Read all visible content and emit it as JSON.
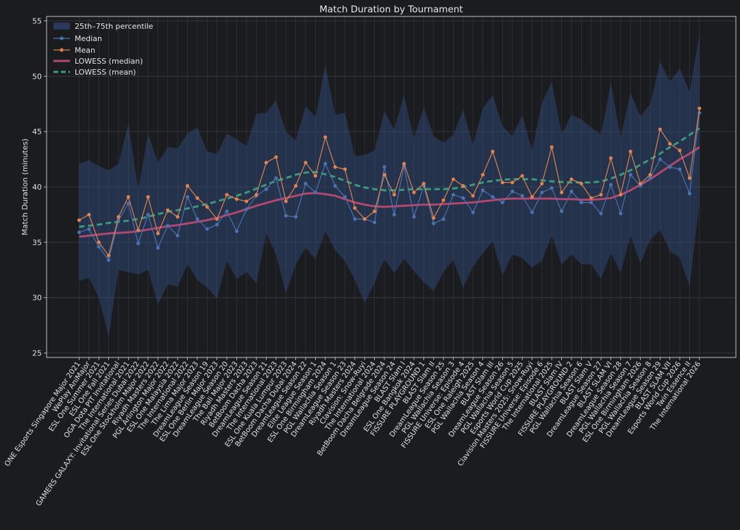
{
  "chart_data": {
    "type": "line",
    "title": "Match Duration by Tournament",
    "xlabel": "",
    "ylabel": "Match Duration (minutes)",
    "ylim": [
      24.6,
      55.4
    ],
    "yticks": [
      25,
      30,
      35,
      40,
      45,
      50,
      55
    ],
    "grid": true,
    "legend_position": "top-left",
    "categories": [
      "ONE Esports Singapore Major 2021",
      "WePlay AniMajor",
      "ESL One Summer 2021",
      "ESL One Fall 2021",
      "OGA Dota PIT Invitational",
      "The International 2021",
      "GAMERS GALAXY: Invitational Series Dubai 2022",
      "ESL One Stockholm Major 2022",
      "Riyadh Masters 2022",
      "PGL Arlington Major 2022",
      "ESL One Malaysia 2022",
      "The International 2022",
      "The Lima Major 2023",
      "DreamLeague Season 19",
      "ESL One Berlin Major 2023",
      "DreamLeague Season 20",
      "The Bali Major 2023",
      "Riyadh Masters 2023",
      "BetBoom Dacha 2023",
      "DreamLeague Season 21",
      "The International 2023",
      "ESL One Kuala Lumpur 2023",
      "BetBoom Dacha Dubai 2024",
      "DreamLeague Season 22",
      "Elite League Season 1",
      "ESL One Birmingham 2024",
      "PGL Wallachia Season 1",
      "DreamLeague Season 23",
      "Riyadh Masters 2024",
      "Clavision: Snow-Ruyi",
      "The International 2024",
      "BetBoom Dacha Belgrade 2024",
      "DreamLeague Season 24",
      "BLAST Slam I",
      "ESL One Bangkok 2024",
      "FISSURE PLAYGROUND 1",
      "BLAST Slam II",
      "DreamLeague Season 25",
      "PGL Wallachia Season 3",
      "FISSURE Universe: Episode 4",
      "ESL One Raleigh 2025",
      "PGL Wallachia Season 4",
      "BLAST Slam III",
      "DreamLeague Season 26",
      "PGL Wallachia Season 5",
      "Esports World Cup 2025",
      "Clavision Masters 2025: Snow-Ruyi",
      "FISSURE Universe: Episode 6",
      "The International 2025",
      "BLAST Slam IV",
      "FISSURE PLAYGROUND 2",
      "PGL Wallachia Season 6",
      "BLAST Slam V",
      "DreamLeague Season 27",
      "BLAST SLAM VI",
      "DreamLeague Season 28",
      "PGL Wallachia Season 7",
      "ESL One Birmingham 2026",
      "PGL Wallachia Season 8",
      "DreamLeague Season 29",
      "BLAST SLAM VII",
      "Esports World Cup 2026",
      "Twin Essence II",
      "The International 2026"
    ],
    "series": [
      {
        "name": "Median",
        "color": "#4c72b0",
        "values": [
          35.9,
          36.2,
          34.6,
          33.4,
          37.0,
          38.5,
          34.9,
          37.5,
          34.5,
          36.5,
          35.6,
          39.1,
          37.1,
          36.2,
          36.6,
          37.8,
          36.0,
          38.0,
          39.2,
          39.8,
          40.8,
          37.4,
          37.3,
          40.3,
          39.5,
          42.1,
          40.1,
          39.1,
          37.1,
          37.1,
          36.8,
          41.8,
          37.5,
          41.9,
          37.3,
          40.1,
          36.7,
          37.1,
          39.3,
          39.0,
          37.7,
          39.7,
          39.1,
          38.6,
          39.6,
          39.2,
          37.7,
          39.5,
          39.9,
          37.8,
          39.6,
          38.6,
          38.6,
          37.6,
          40.2,
          37.6,
          41.1,
          40.1,
          40.8,
          42.5,
          41.8,
          41.6,
          39.4,
          46.7
        ]
      },
      {
        "name": "Mean",
        "color": "#dd8452",
        "values": [
          37.0,
          37.5,
          35.0,
          33.8,
          37.3,
          39.1,
          36.1,
          39.1,
          35.8,
          37.9,
          37.3,
          40.1,
          39.0,
          38.2,
          37.1,
          39.3,
          38.9,
          38.7,
          39.3,
          42.2,
          42.7,
          38.7,
          40.1,
          42.2,
          41.0,
          44.5,
          41.8,
          41.6,
          38.1,
          37.1,
          37.8,
          41.1,
          39.3,
          42.1,
          39.5,
          40.3,
          37.2,
          38.8,
          40.7,
          40.1,
          39.2,
          41.1,
          43.2,
          40.4,
          40.4,
          41.0,
          39.1,
          40.3,
          43.6,
          39.5,
          40.7,
          40.3,
          39.0,
          39.3,
          42.6,
          39.3,
          43.2,
          40.3,
          41.1,
          45.2,
          43.9,
          43.3,
          40.8,
          47.1
        ]
      },
      {
        "name": "LOWESS (median)",
        "color": "#b84a72",
        "values": [
          35.5,
          35.6,
          35.7,
          35.8,
          35.85,
          35.9,
          36.0,
          36.15,
          36.3,
          36.45,
          36.55,
          36.7,
          36.85,
          37.0,
          37.2,
          37.45,
          37.7,
          38.0,
          38.3,
          38.55,
          38.8,
          39.0,
          39.2,
          39.4,
          39.45,
          39.35,
          39.2,
          38.9,
          38.6,
          38.4,
          38.25,
          38.2,
          38.25,
          38.3,
          38.35,
          38.4,
          38.4,
          38.45,
          38.5,
          38.55,
          38.6,
          38.7,
          38.8,
          38.9,
          38.95,
          38.95,
          38.95,
          38.95,
          38.95,
          38.9,
          38.9,
          38.85,
          38.85,
          38.9,
          39.0,
          39.3,
          39.7,
          40.2,
          40.7,
          41.3,
          41.9,
          42.5,
          43.0,
          43.6
        ]
      },
      {
        "name": "LOWESS (mean)",
        "color": "#3d9f7f",
        "values": [
          36.4,
          36.5,
          36.6,
          36.75,
          36.85,
          36.95,
          37.1,
          37.3,
          37.55,
          37.75,
          37.9,
          38.05,
          38.25,
          38.45,
          38.7,
          38.95,
          39.2,
          39.5,
          39.85,
          40.2,
          40.55,
          40.8,
          41.1,
          41.3,
          41.35,
          41.15,
          40.9,
          40.55,
          40.2,
          39.95,
          39.8,
          39.7,
          39.7,
          39.75,
          39.8,
          39.8,
          39.8,
          39.8,
          39.85,
          40.0,
          40.2,
          40.4,
          40.55,
          40.65,
          40.7,
          40.7,
          40.7,
          40.6,
          40.5,
          40.45,
          40.4,
          40.4,
          40.4,
          40.5,
          40.75,
          41.1,
          41.5,
          42.0,
          42.5,
          43.0,
          43.6,
          44.1,
          44.7,
          45.3
        ]
      }
    ],
    "band": {
      "name": "25th–75th percentile",
      "color": "#3a5fa8",
      "lower": [
        31.5,
        31.8,
        30.0,
        26.5,
        32.5,
        32.3,
        32.1,
        32.5,
        29.4,
        31.2,
        31.0,
        33.0,
        31.6,
        30.9,
        29.9,
        33.3,
        31.7,
        32.3,
        31.3,
        35.8,
        33.9,
        30.4,
        33.0,
        34.5,
        33.5,
        36.0,
        34.3,
        33.3,
        31.6,
        29.5,
        31.3,
        33.5,
        32.2,
        33.5,
        32.4,
        31.4,
        30.6,
        32.3,
        33.4,
        30.9,
        32.8,
        34.0,
        35.1,
        32.0,
        33.9,
        33.6,
        32.7,
        33.3,
        35.6,
        33.0,
        33.9,
        33.0,
        33.0,
        31.7,
        34.0,
        32.3,
        35.6,
        33.1,
        35.2,
        36.1,
        34.2,
        33.6,
        31.0,
        38.5
      ],
      "upper": [
        42.1,
        42.4,
        41.9,
        41.5,
        42.1,
        45.7,
        39.8,
        44.8,
        42.2,
        43.6,
        43.5,
        44.8,
        45.4,
        43.2,
        43.0,
        44.8,
        44.3,
        43.7,
        46.6,
        46.7,
        47.8,
        45.0,
        44.2,
        47.3,
        46.3,
        51.0,
        46.5,
        46.7,
        42.8,
        42.9,
        43.3,
        46.8,
        45.2,
        48.3,
        44.4,
        47.2,
        44.6,
        44.0,
        44.7,
        47.0,
        43.8,
        47.1,
        48.3,
        45.5,
        44.6,
        46.5,
        43.3,
        47.6,
        49.5,
        44.8,
        46.5,
        46.1,
        45.4,
        44.7,
        49.4,
        44.5,
        48.5,
        46.4,
        47.5,
        51.3,
        49.5,
        50.7,
        48.6,
        53.8
      ]
    }
  },
  "legend": {
    "band_label": "25th–75th percentile",
    "median_label": "Median",
    "mean_label": "Mean",
    "lowess_median_label": "LOWESS (median)",
    "lowess_mean_label": "LOWESS (mean)"
  }
}
